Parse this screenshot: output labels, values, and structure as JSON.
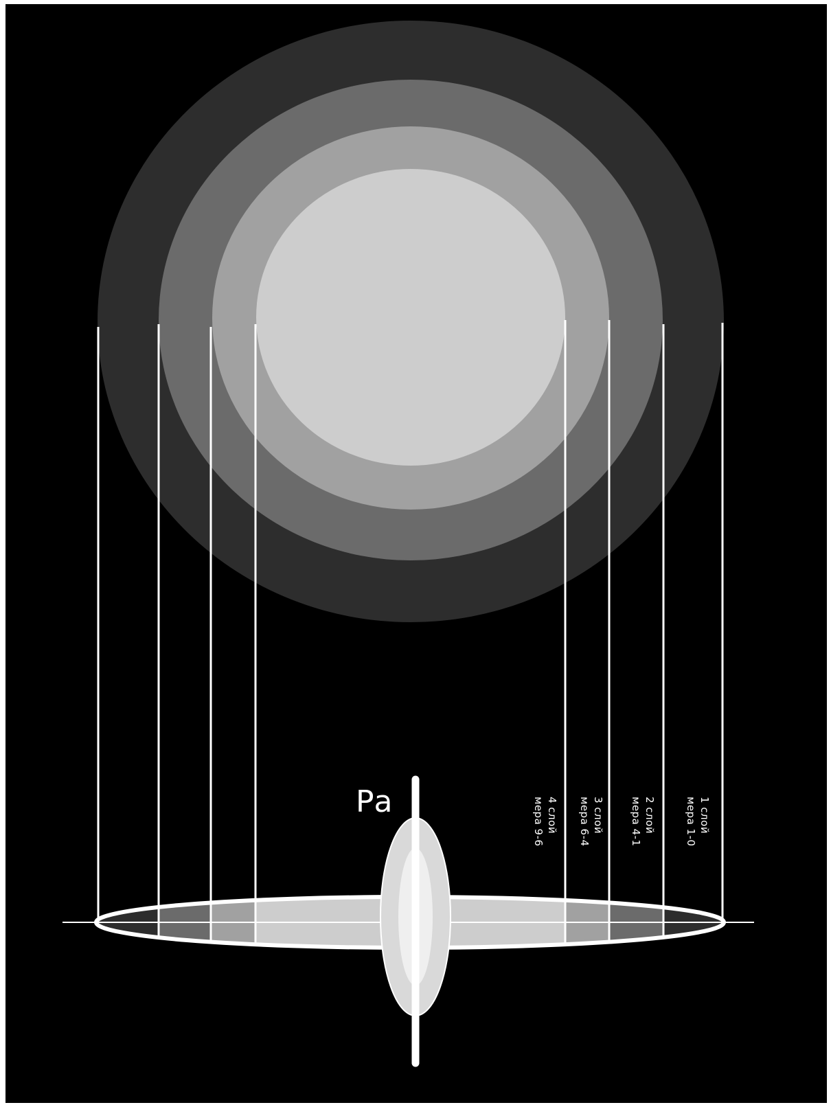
{
  "ra_label": "Ра",
  "layers": [
    {
      "line1": "1 слой",
      "line2": "мера 1-0",
      "color": "#2d2d2d"
    },
    {
      "line1": "2 слой",
      "line2": "мера 4-1",
      "color": "#6b6b6b"
    },
    {
      "line1": "3 слой",
      "line2": "мера 6-4",
      "color": "#a1a1a1"
    },
    {
      "line1": "4 слой",
      "line2": "мера 9-6",
      "color": "#cdcdcd"
    }
  ],
  "colors": {
    "background": "#000000",
    "lines": "#ffffff",
    "core_outer": "#d9d9d9",
    "core_inner": "#efefef"
  }
}
